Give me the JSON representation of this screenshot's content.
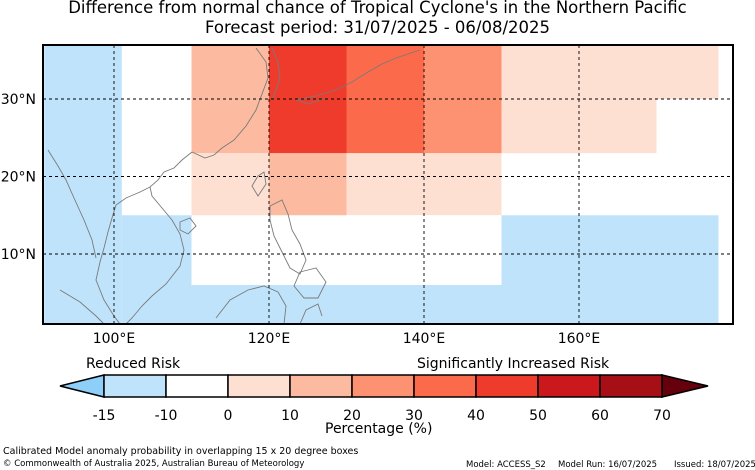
{
  "title": {
    "line1": "Difference from normal chance of Tropical Cyclone's in the Northern Pacific",
    "line2": "Forecast period: 31/07/2025 - 06/08/2025"
  },
  "map": {
    "lat_ticks": [
      "30°N",
      "20°N",
      "10°N"
    ],
    "lon_ticks": [
      "100°E",
      "120°E",
      "140°E",
      "160°E"
    ],
    "cells": [
      {
        "lon": [
          110,
          120
        ],
        "lat": [
          30,
          37
        ],
        "pct": 15
      },
      {
        "lon": [
          120,
          130
        ],
        "lat": [
          30,
          37
        ],
        "pct": 45
      },
      {
        "lon": [
          130,
          140
        ],
        "lat": [
          30,
          37
        ],
        "pct": 35
      },
      {
        "lon": [
          140,
          150
        ],
        "lat": [
          30,
          37
        ],
        "pct": 25
      },
      {
        "lon": [
          150,
          160
        ],
        "lat": [
          30,
          37
        ],
        "pct": 5
      },
      {
        "lon": [
          160,
          178
        ],
        "lat": [
          30,
          37
        ],
        "pct": 2
      },
      {
        "lon": [
          110,
          120
        ],
        "lat": [
          23,
          30
        ],
        "pct": 15
      },
      {
        "lon": [
          120,
          130
        ],
        "lat": [
          23,
          30
        ],
        "pct": 45
      },
      {
        "lon": [
          130,
          140
        ],
        "lat": [
          23,
          30
        ],
        "pct": 35
      },
      {
        "lon": [
          140,
          150
        ],
        "lat": [
          23,
          30
        ],
        "pct": 25
      },
      {
        "lon": [
          150,
          160
        ],
        "lat": [
          23,
          30
        ],
        "pct": 5
      },
      {
        "lon": [
          160,
          170
        ],
        "lat": [
          23,
          30
        ],
        "pct": 2
      },
      {
        "lon": [
          110,
          120
        ],
        "lat": [
          15,
          23
        ],
        "pct": 5
      },
      {
        "lon": [
          120,
          130
        ],
        "lat": [
          15,
          23
        ],
        "pct": 15
      },
      {
        "lon": [
          130,
          140
        ],
        "lat": [
          15,
          23
        ],
        "pct": 5
      },
      {
        "lon": [
          140,
          150
        ],
        "lat": [
          15,
          23
        ],
        "pct": 2
      },
      {
        "lon": [
          160,
          178
        ],
        "lat": [
          15,
          23
        ],
        "pct": -5
      },
      {
        "lon": [
          130,
          150
        ],
        "lat": [
          6,
          15
        ],
        "pct": -5
      },
      {
        "lon": [
          91,
          101
        ],
        "lat": [
          1,
          37
        ],
        "pct": -12
      },
      {
        "lon": [
          101,
          110
        ],
        "lat": [
          1,
          15
        ],
        "pct": -12
      },
      {
        "lon": [
          110,
          178
        ],
        "lat": [
          1,
          6
        ],
        "pct": -12
      },
      {
        "lon": [
          150,
          178
        ],
        "lat": [
          6,
          15
        ],
        "pct": -12
      }
    ]
  },
  "colorbar": {
    "left_label": "Reduced Risk",
    "right_label": "Significantly Increased Risk",
    "ticks": [
      "-15",
      "-10",
      "0",
      "10",
      "20",
      "30",
      "40",
      "50",
      "60",
      "70"
    ],
    "xlabel": "Percentage (%)",
    "colors": [
      "#bfe3fb",
      "#ffffff",
      "#fee0d2",
      "#fcbba1",
      "#fc9272",
      "#fb6a4a",
      "#ef3b2c",
      "#cb181d",
      "#a50f15"
    ],
    "under_color": "#8ecff9",
    "over_color": "#67000d"
  },
  "footer": {
    "description": "Calibrated Model anomaly probability in overlapping 15 x 20 degree boxes",
    "copyright": "© Commonwealth of Australia 2025, Australian Bureau of Meteorology",
    "model": "Model: ACCESS_S2",
    "model_run": "Model Run: 16/07/2025",
    "issued": "Issued: 18/07/2025"
  }
}
